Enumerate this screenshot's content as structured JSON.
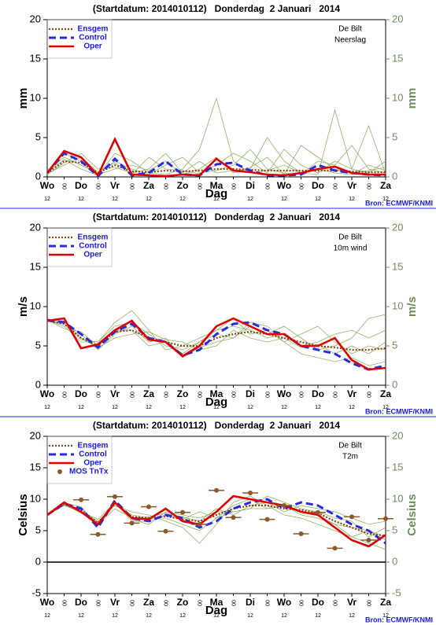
{
  "chart_data": [
    {
      "type": "line",
      "title": "(Startdatum: 2014010112)   Donderdag  2 Januari   2014",
      "location": "De Bilt",
      "variable": "Neerslag",
      "ylabel": "mm",
      "xlabel": "Dag",
      "source": "Bron: ECMWF/KNMI",
      "hour_label": "12",
      "x": [
        0,
        12,
        24,
        36,
        48,
        60,
        72,
        84,
        96,
        108,
        120,
        132,
        144,
        156,
        168,
        180,
        192,
        204,
        216,
        228,
        240
      ],
      "xlim": [
        0,
        240
      ],
      "xticks": [
        {
          "value": 0,
          "label": "Wo"
        },
        {
          "value": 24,
          "label": "Do"
        },
        {
          "value": 48,
          "label": "Vr"
        },
        {
          "value": 72,
          "label": "Za"
        },
        {
          "value": 96,
          "label": "Zo"
        },
        {
          "value": 120,
          "label": "Ma"
        },
        {
          "value": 144,
          "label": "Di"
        },
        {
          "value": 168,
          "label": "Wo"
        },
        {
          "value": 192,
          "label": "Do"
        },
        {
          "value": 216,
          "label": "Vr"
        },
        {
          "value": 240,
          "label": "Za"
        }
      ],
      "xticks_minor": [
        {
          "value": 12,
          "label": "00"
        },
        {
          "value": 36,
          "label": "00"
        },
        {
          "value": 60,
          "label": "00"
        },
        {
          "value": 84,
          "label": "00"
        },
        {
          "value": 108,
          "label": "00"
        },
        {
          "value": 132,
          "label": "00"
        },
        {
          "value": 156,
          "label": "00"
        },
        {
          "value": 180,
          "label": "00"
        },
        {
          "value": 204,
          "label": "00"
        },
        {
          "value": 228,
          "label": "00"
        }
      ],
      "ylim": [
        0,
        20
      ],
      "yticks": [
        0,
        5,
        10,
        15,
        20
      ],
      "zero_line": false,
      "member_color": "#8fb36a",
      "members": [
        [
          0.8,
          2.5,
          1.5,
          0.4,
          2,
          1,
          0.3,
          1.5,
          2.5,
          0.5,
          0.8,
          1.5,
          3.5,
          1,
          0.5,
          0.3,
          2,
          1.5,
          4,
          1,
          0.5
        ],
        [
          0.3,
          1.8,
          3,
          1,
          1.2,
          0.5,
          1,
          3,
          0.5,
          2,
          0.5,
          0.8,
          1,
          5,
          2,
          0.5,
          0.3,
          8.5,
          1,
          0.5,
          2
        ],
        [
          0.6,
          2.2,
          1,
          0.2,
          3,
          2,
          0.5,
          0.3,
          1,
          3.5,
          10,
          2,
          0.5,
          0.8,
          1.5,
          0.5,
          1,
          0.5,
          0.3,
          1.5,
          0.8
        ],
        [
          0.4,
          1.5,
          2.5,
          0.6,
          1.8,
          0.3,
          2.5,
          1,
          0.8,
          0.4,
          1.5,
          3,
          2,
          0.5,
          3.5,
          1.5,
          0.5,
          2,
          1,
          6.5,
          0.4
        ],
        [
          0.5,
          3,
          2,
          0.3,
          1,
          1.5,
          0.8,
          2,
          0.3,
          1,
          2.5,
          0.5,
          1.2,
          2.5,
          0.3,
          4,
          2.5,
          1,
          0.5,
          0.8,
          1.2
        ]
      ],
      "series": [
        {
          "name": "Ensgem",
          "color": "#8b4513",
          "style": "dotted",
          "values": [
            0.5,
            2,
            1.8,
            0.5,
            1.5,
            0.7,
            0.6,
            0.8,
            0.7,
            0.8,
            1,
            1,
            0.9,
            0.8,
            0.8,
            0.8,
            0.8,
            0.8,
            0.7,
            0.6,
            0.6
          ]
        },
        {
          "name": "Control",
          "color": "#2a2ae0",
          "style": "dashed",
          "values": [
            0.5,
            3,
            2,
            0.1,
            2.3,
            0.2,
            0.5,
            2,
            0.3,
            0.2,
            1.6,
            1.8,
            0.8,
            0.2,
            0.2,
            0.3,
            1.5,
            0.8,
            0.5,
            0.3,
            0.2
          ]
        },
        {
          "name": "Oper",
          "color": "#e00000",
          "style": "solid",
          "values": [
            0.5,
            3.3,
            2.5,
            0.2,
            4.8,
            0.3,
            0.2,
            0.1,
            0.3,
            0.2,
            2.3,
            0.8,
            0.6,
            0.3,
            0.2,
            0.5,
            1,
            1.3,
            0.5,
            0.3,
            0.3
          ]
        }
      ]
    },
    {
      "type": "line",
      "title": "(Startdatum: 2014010112)   Donderdag  2 Januari   2014",
      "location": "De Bilt",
      "variable": "10m wind",
      "ylabel": "m/s",
      "xlabel": "Dag",
      "source": "Bron: ECMWF/KNMI",
      "hour_label": "12",
      "x": [
        0,
        12,
        24,
        36,
        48,
        60,
        72,
        84,
        96,
        108,
        120,
        132,
        144,
        156,
        168,
        180,
        192,
        204,
        216,
        228,
        240
      ],
      "xlim": [
        0,
        240
      ],
      "xticks": [
        {
          "value": 0,
          "label": "Wo"
        },
        {
          "value": 24,
          "label": "Do"
        },
        {
          "value": 48,
          "label": "Vr"
        },
        {
          "value": 72,
          "label": "Za"
        },
        {
          "value": 96,
          "label": "Zo"
        },
        {
          "value": 120,
          "label": "Ma"
        },
        {
          "value": 144,
          "label": "Di"
        },
        {
          "value": 168,
          "label": "Wo"
        },
        {
          "value": 192,
          "label": "Do"
        },
        {
          "value": 216,
          "label": "Vr"
        },
        {
          "value": 240,
          "label": "Za"
        }
      ],
      "xticks_minor": [
        {
          "value": 12,
          "label": "00"
        },
        {
          "value": 36,
          "label": "00"
        },
        {
          "value": 60,
          "label": "00"
        },
        {
          "value": 84,
          "label": "00"
        },
        {
          "value": 108,
          "label": "00"
        },
        {
          "value": 132,
          "label": "00"
        },
        {
          "value": 156,
          "label": "00"
        },
        {
          "value": 180,
          "label": "00"
        },
        {
          "value": 204,
          "label": "00"
        },
        {
          "value": 228,
          "label": "00"
        }
      ],
      "ylim": [
        0,
        20
      ],
      "yticks": [
        0,
        5,
        10,
        15,
        20
      ],
      "zero_line": false,
      "member_color": "#8fb36a",
      "members": [
        [
          8.3,
          7.5,
          5.5,
          5.5,
          7.5,
          8,
          6.5,
          5,
          4.5,
          5.5,
          7,
          7.5,
          7,
          6,
          6.5,
          5,
          5.5,
          6.5,
          7,
          6,
          7
        ],
        [
          8.2,
          8,
          6.5,
          4.5,
          6.5,
          7.5,
          5.5,
          6,
          3.5,
          4.8,
          5.5,
          6,
          8,
          7.5,
          5.5,
          4,
          3.5,
          3,
          3.5,
          2.5,
          3
        ],
        [
          8.1,
          7.8,
          5.8,
          5.5,
          8,
          9.5,
          7,
          4.5,
          5,
          6,
          7,
          8.5,
          6.5,
          7,
          5.5,
          6.5,
          7.5,
          5.5,
          4,
          5,
          4.5
        ],
        [
          8.3,
          7.2,
          6.8,
          5,
          7,
          7,
          5,
          5.5,
          4,
          5.5,
          6.5,
          6,
          7.5,
          6.5,
          7.5,
          6,
          4.5,
          5,
          6,
          8.5,
          9
        ],
        [
          8.2,
          8.2,
          6,
          4.8,
          6,
          6.5,
          6.8,
          5.8,
          5.5,
          4.5,
          5,
          7,
          6,
          5.5,
          6,
          4.8,
          5.2,
          4,
          5,
          4,
          5.5
        ]
      ],
      "series": [
        {
          "name": "Ensgem",
          "color": "#8b4513",
          "style": "dotted",
          "values": [
            8.2,
            7.8,
            6,
            5,
            6.8,
            7,
            6,
            5.5,
            5,
            5,
            6,
            6.5,
            6.8,
            6.5,
            6,
            5.5,
            5,
            4.8,
            4.5,
            4.5,
            4.7
          ]
        },
        {
          "name": "Control",
          "color": "#2a2ae0",
          "style": "dashed",
          "values": [
            8.3,
            8,
            6.5,
            4.8,
            6.8,
            7.8,
            6,
            5.5,
            3.8,
            4.5,
            6.5,
            7.8,
            8,
            7,
            6.5,
            5,
            4.5,
            4,
            2.8,
            2,
            2.5
          ]
        },
        {
          "name": "Oper",
          "color": "#e00000",
          "style": "solid",
          "values": [
            8.2,
            8.5,
            4.7,
            5.2,
            7,
            8.2,
            5.8,
            5.5,
            3.7,
            5,
            7.5,
            8.5,
            7.5,
            6.5,
            6.5,
            5,
            5,
            6,
            3.2,
            2,
            2.2
          ]
        }
      ]
    },
    {
      "type": "line",
      "title": "(Startdatum: 2014010112)   Donderdag  2 Januari   2014",
      "location": "De Bilt",
      "variable": "T2m",
      "ylabel": "Celsius",
      "xlabel": "Dag",
      "source": "Bron: ECMWF/KNMI",
      "hour_label": "12",
      "x": [
        0,
        12,
        24,
        36,
        48,
        60,
        72,
        84,
        96,
        108,
        120,
        132,
        144,
        156,
        168,
        180,
        192,
        204,
        216,
        228,
        240
      ],
      "xlim": [
        0,
        240
      ],
      "xticks": [
        {
          "value": 0,
          "label": "Wo"
        },
        {
          "value": 24,
          "label": "Do"
        },
        {
          "value": 48,
          "label": "Vr"
        },
        {
          "value": 72,
          "label": "Za"
        },
        {
          "value": 96,
          "label": "Zo"
        },
        {
          "value": 120,
          "label": "Ma"
        },
        {
          "value": 144,
          "label": "Di"
        },
        {
          "value": 168,
          "label": "Wo"
        },
        {
          "value": 192,
          "label": "Do"
        },
        {
          "value": 216,
          "label": "Vr"
        },
        {
          "value": 240,
          "label": "Za"
        }
      ],
      "xticks_minor": [
        {
          "value": 12,
          "label": "00"
        },
        {
          "value": 36,
          "label": "00"
        },
        {
          "value": 60,
          "label": "00"
        },
        {
          "value": 84,
          "label": "00"
        },
        {
          "value": 108,
          "label": "00"
        },
        {
          "value": 132,
          "label": "00"
        },
        {
          "value": 156,
          "label": "00"
        },
        {
          "value": 180,
          "label": "00"
        },
        {
          "value": 204,
          "label": "00"
        },
        {
          "value": 228,
          "label": "00"
        }
      ],
      "ylim": [
        -5,
        20
      ],
      "yticks": [
        -5,
        0,
        5,
        10,
        15,
        20
      ],
      "zero_line": true,
      "member_color": "#8fb36a",
      "members": [
        [
          7.5,
          9,
          8,
          6.5,
          9,
          7.5,
          7,
          7,
          6,
          5,
          7,
          9,
          10,
          8.5,
          9,
          7.5,
          7,
          6,
          4,
          5,
          3.5
        ],
        [
          7.6,
          9.4,
          8.8,
          5.8,
          9.6,
          6.8,
          6,
          8,
          7.5,
          7,
          8,
          8,
          8.5,
          10.5,
          9.5,
          8.5,
          8,
          7,
          6.5,
          4,
          5.5
        ],
        [
          7.4,
          9.2,
          7.8,
          6.5,
          9,
          8,
          7.5,
          6.5,
          5.5,
          3,
          6,
          9.5,
          10.5,
          9,
          7.5,
          7,
          6,
          5,
          4,
          3,
          2
        ],
        [
          7.5,
          9.1,
          8.5,
          6,
          8.5,
          7,
          7.2,
          7.8,
          7.2,
          6.5,
          8.5,
          7.5,
          9,
          9.5,
          8,
          9,
          8.5,
          8,
          7,
          6,
          6.5
        ],
        [
          7.5,
          9.3,
          8,
          6.8,
          9.5,
          6.5,
          6.5,
          7.5,
          6.8,
          8,
          7,
          8,
          8.5,
          8.5,
          9,
          8,
          7.5,
          6,
          5.5,
          5,
          4
        ]
      ],
      "series": [
        {
          "name": "Ensgem",
          "color": "#8b4513",
          "style": "dotted",
          "values": [
            7.5,
            9.2,
            8.3,
            6.2,
            9.3,
            7.2,
            7,
            7.3,
            6.8,
            6.5,
            7.5,
            8.5,
            9,
            9,
            8.5,
            8.3,
            7.8,
            6.5,
            5.5,
            4.5,
            4.2
          ]
        },
        {
          "name": "Control",
          "color": "#2a2ae0",
          "style": "dashed",
          "values": [
            7.5,
            9.3,
            8.5,
            5.5,
            9.8,
            7,
            6.5,
            7.5,
            7,
            5.5,
            6.5,
            8.5,
            9.5,
            10,
            8.5,
            9.5,
            9,
            7.5,
            6,
            5,
            3
          ]
        },
        {
          "name": "Oper",
          "color": "#e00000",
          "style": "solid",
          "values": [
            7.5,
            9.5,
            8,
            6,
            9.5,
            7,
            6.8,
            8.5,
            6.5,
            6,
            8,
            10.5,
            10,
            9.5,
            9,
            8,
            7.5,
            5.5,
            3.5,
            2.5,
            4.3
          ]
        },
        {
          "name": "MOS TnTx",
          "color": "#8b5a2b",
          "style": "points",
          "x": [
            24,
            36,
            48,
            60,
            72,
            84,
            96,
            108,
            120,
            132,
            144,
            156,
            168,
            180,
            192,
            204,
            216,
            228,
            240
          ],
          "values": [
            9.9,
            4.4,
            10.4,
            6.2,
            8.8,
            4.9,
            7.9,
            6,
            11.4,
            7.1,
            11,
            6.8,
            9,
            4.5,
            7.9,
            2.2,
            7.2,
            3.5,
            6.9
          ]
        }
      ]
    }
  ]
}
